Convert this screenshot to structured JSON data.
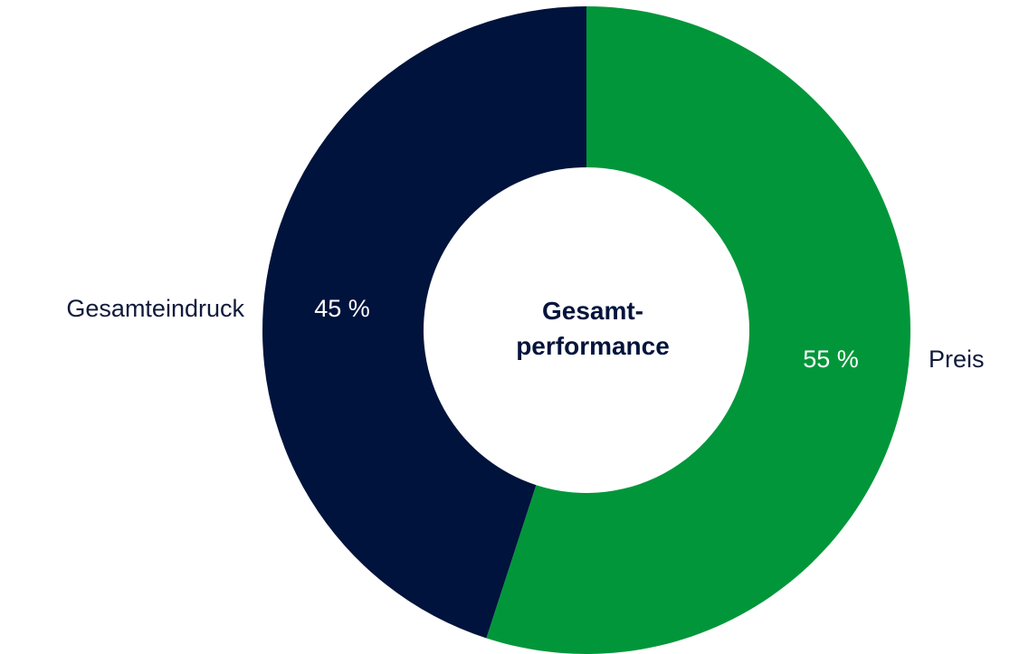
{
  "chart_data": {
    "type": "pie",
    "donut": true,
    "center_label": [
      "Gesamt-",
      "performance"
    ],
    "categories": [
      "Preis",
      "Gesamteindruck"
    ],
    "values": [
      55,
      45
    ],
    "value_labels": [
      "55 %",
      "45 %"
    ],
    "colors": [
      "#02963a",
      "#00133c"
    ],
    "title": "",
    "legend": "none"
  }
}
